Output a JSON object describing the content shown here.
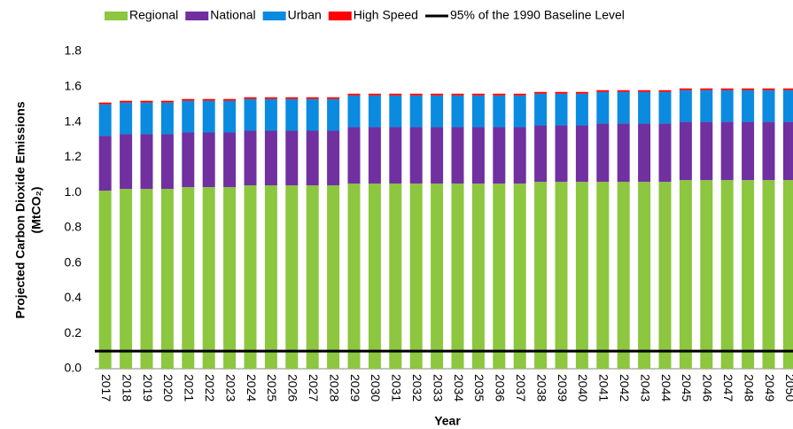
{
  "chart_data": {
    "type": "stacked-bar",
    "y_label": [
      "Projected Carbon Dioxide Emissions",
      "(MtCO₂)"
    ],
    "x_label": "Year",
    "categories": [
      "2017",
      "2018",
      "2019",
      "2020",
      "2021",
      "2022",
      "2023",
      "2024",
      "2025",
      "2026",
      "2027",
      "2028",
      "2029",
      "2030",
      "2031",
      "2032",
      "2033",
      "2034",
      "2035",
      "2036",
      "2037",
      "2038",
      "2039",
      "2040",
      "2041",
      "2042",
      "2043",
      "2044",
      "2045",
      "2046",
      "2047",
      "2048",
      "2049",
      "2050"
    ],
    "series": [
      {
        "name": "Regional",
        "color": "#8dc63f",
        "values": [
          1.01,
          1.02,
          1.02,
          1.02,
          1.03,
          1.03,
          1.03,
          1.04,
          1.04,
          1.04,
          1.04,
          1.04,
          1.05,
          1.05,
          1.05,
          1.05,
          1.05,
          1.05,
          1.05,
          1.05,
          1.05,
          1.06,
          1.06,
          1.06,
          1.06,
          1.06,
          1.06,
          1.06,
          1.07,
          1.07,
          1.07,
          1.07,
          1.07,
          1.07
        ]
      },
      {
        "name": "National",
        "color": "#7030a0",
        "values": [
          0.31,
          0.31,
          0.31,
          0.31,
          0.31,
          0.31,
          0.31,
          0.31,
          0.31,
          0.31,
          0.31,
          0.31,
          0.32,
          0.32,
          0.32,
          0.32,
          0.32,
          0.32,
          0.32,
          0.32,
          0.32,
          0.32,
          0.32,
          0.32,
          0.33,
          0.33,
          0.33,
          0.33,
          0.33,
          0.33,
          0.33,
          0.33,
          0.33,
          0.33
        ]
      },
      {
        "name": "Urban",
        "color": "#0b8be0",
        "values": [
          0.18,
          0.18,
          0.18,
          0.18,
          0.18,
          0.18,
          0.18,
          0.18,
          0.18,
          0.18,
          0.18,
          0.18,
          0.18,
          0.18,
          0.18,
          0.18,
          0.18,
          0.18,
          0.18,
          0.18,
          0.18,
          0.18,
          0.18,
          0.18,
          0.18,
          0.18,
          0.18,
          0.18,
          0.18,
          0.18,
          0.18,
          0.18,
          0.18,
          0.18
        ]
      },
      {
        "name": "High Speed",
        "color": "#ff0000",
        "values": [
          0.01,
          0.01,
          0.01,
          0.01,
          0.01,
          0.01,
          0.01,
          0.01,
          0.01,
          0.01,
          0.01,
          0.01,
          0.01,
          0.01,
          0.01,
          0.01,
          0.01,
          0.01,
          0.01,
          0.01,
          0.01,
          0.01,
          0.01,
          0.01,
          0.01,
          0.01,
          0.01,
          0.01,
          0.01,
          0.01,
          0.01,
          0.01,
          0.01,
          0.01
        ]
      }
    ],
    "baseline": {
      "name": "95% of the 1990 Baseline Level",
      "color": "#000000",
      "value": 0.1
    },
    "ylim": [
      0,
      1.8
    ],
    "yticks": [
      {
        "value": 0,
        "label": "0.0"
      },
      0.2,
      0.4,
      0.6,
      0.8,
      {
        "value": 1,
        "label": "1.0"
      },
      1.2,
      1.4,
      1.6,
      1.8
    ]
  }
}
